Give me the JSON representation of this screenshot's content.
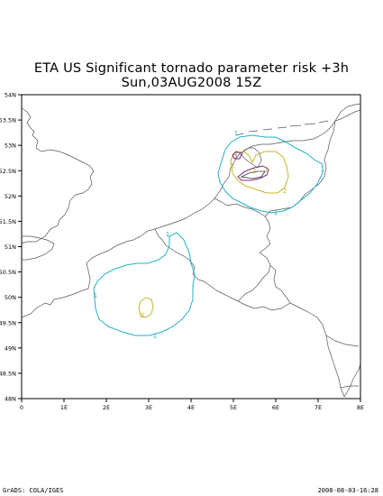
{
  "title": {
    "line1": "ETA US Significant tornado parameter risk +3h",
    "line2": "Sun,03AUG2008 15Z"
  },
  "axes": {
    "lon_ticks": [
      "0",
      "1E",
      "2E",
      "3E",
      "4E",
      "5E",
      "6E",
      "7E",
      "8E"
    ],
    "lat_ticks": [
      "48N",
      "48.5N",
      "49N",
      "49.5N",
      "50N",
      "50.5N",
      "51N",
      "51.5N",
      "52N",
      "52.5N",
      "53N",
      "53.5N",
      "54N"
    ],
    "lon_range": [
      0,
      8
    ],
    "lat_range": [
      48,
      54
    ]
  },
  "contours": {
    "labels": [
      "1",
      "1",
      "1",
      "1",
      "1",
      "1",
      "2",
      "2",
      "2",
      "2",
      "2",
      "1"
    ],
    "level1_color": "#20b0c8",
    "level2_color": "#c8b428",
    "level3_color": "#7a2a8a"
  },
  "footer": {
    "left": "GrADS: COLA/IGES",
    "right": "2008-08-03-16:28"
  }
}
